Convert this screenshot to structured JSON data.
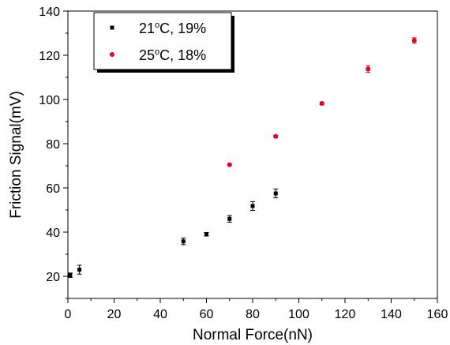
{
  "chart_data": {
    "type": "scatter",
    "xlabel": "Normal Force(nN)",
    "ylabel": "Friction Signal(mV)",
    "xlim": [
      0,
      160
    ],
    "ylim": [
      10,
      140
    ],
    "x_ticks": [
      0,
      20,
      40,
      60,
      80,
      100,
      120,
      140,
      160
    ],
    "y_ticks": [
      20,
      40,
      60,
      80,
      100,
      120,
      140
    ],
    "x_tick_labels": [
      "0",
      "20",
      "40",
      "60",
      "80",
      "100",
      "120",
      "140",
      "160"
    ],
    "y_tick_labels": [
      "20",
      "40",
      "60",
      "80",
      "100",
      "120",
      "140"
    ],
    "grid": false,
    "legend_position": "top-left",
    "series": [
      {
        "name": "21°C, 19%",
        "legend_label": {
          "prefix": "21",
          "sup": "o",
          "suffix": "C, 19%"
        },
        "marker": "square",
        "color": "#000000",
        "points": [
          {
            "x": 1,
            "y": 20.5,
            "err": 1.0
          },
          {
            "x": 5,
            "y": 23.0,
            "err": 2.0
          },
          {
            "x": 50,
            "y": 35.8,
            "err": 1.5
          },
          {
            "x": 60,
            "y": 39.0,
            "err": 0.8
          },
          {
            "x": 70,
            "y": 46.0,
            "err": 1.5
          },
          {
            "x": 80,
            "y": 51.8,
            "err": 2.0
          },
          {
            "x": 90,
            "y": 57.5,
            "err": 2.0
          }
        ]
      },
      {
        "name": "25°C, 18%",
        "legend_label": {
          "prefix": "25",
          "sup": "o",
          "suffix": "C, 18%"
        },
        "marker": "circle",
        "color": "#e8001c",
        "points": [
          {
            "x": 70,
            "y": 70.5,
            "err": 0.5
          },
          {
            "x": 90,
            "y": 83.3,
            "err": 0.5
          },
          {
            "x": 110,
            "y": 98.2,
            "err": 0.6
          },
          {
            "x": 130,
            "y": 113.8,
            "err": 1.5
          },
          {
            "x": 150,
            "y": 126.7,
            "err": 1.2
          }
        ]
      }
    ]
  }
}
